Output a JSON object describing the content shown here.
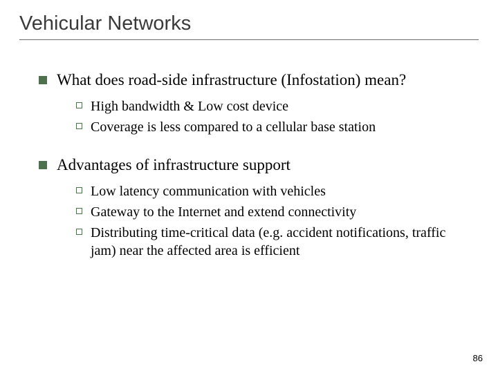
{
  "title": "Vehicular Networks",
  "page_number": "86",
  "colors": {
    "background": "#ffffff",
    "title_text": "#3a3a3a",
    "underline": "#6b6b6b",
    "bullet_fill": "#4d714d",
    "text": "#000000"
  },
  "typography": {
    "title_font": "Arial",
    "title_size_pt": 29,
    "body_font": "Times New Roman",
    "level1_size_pt": 23,
    "level2_size_pt": 20,
    "pagenum_size_pt": 13
  },
  "items": [
    {
      "text": "What does road-side infrastructure (Infostation) mean?",
      "sub": [
        {
          "text": "High bandwidth & Low cost device"
        },
        {
          "text": "Coverage is less compared to a cellular base station"
        }
      ]
    },
    {
      "text": "Advantages of  infrastructure support",
      "sub": [
        {
          "text": "Low latency communication with vehicles"
        },
        {
          "text": "Gateway to the Internet  and extend connectivity"
        },
        {
          "text": "Distributing time-critical data (e.g. accident notifications, traffic jam) near the affected area is efficient"
        }
      ]
    }
  ]
}
